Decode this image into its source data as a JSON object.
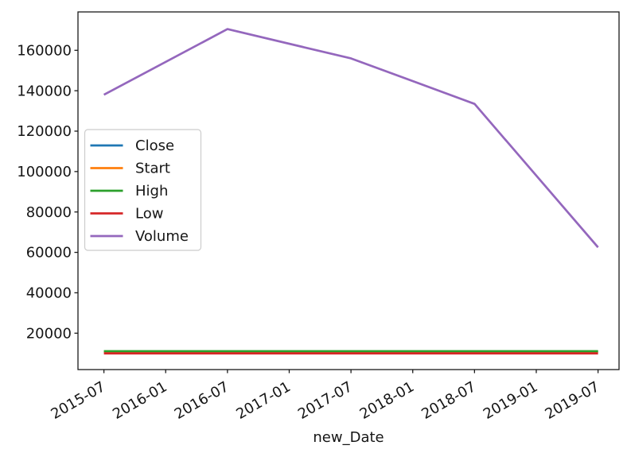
{
  "chart_data": {
    "type": "line",
    "title": "",
    "xlabel": "new_Date",
    "ylabel": "",
    "x_dates": [
      "2015-07",
      "2016-07",
      "2017-07",
      "2018-07",
      "2019-07"
    ],
    "x": [
      0,
      1,
      2,
      3,
      4
    ],
    "series": [
      {
        "name": "Close",
        "color": "#1f77b4",
        "values": [
          10900,
          10900,
          10900,
          10900,
          10900
        ]
      },
      {
        "name": "Start",
        "color": "#ff7f0e",
        "values": [
          10850,
          10850,
          10850,
          10850,
          10850
        ]
      },
      {
        "name": "High",
        "color": "#2ca02c",
        "values": [
          11100,
          11100,
          11100,
          11100,
          11100
        ]
      },
      {
        "name": "Low",
        "color": "#d62728",
        "values": [
          10000,
          10000,
          10000,
          10000,
          10000
        ]
      },
      {
        "name": "Volume",
        "color": "#9467bd",
        "values": [
          138000,
          170500,
          156000,
          133500,
          62500
        ]
      }
    ],
    "x_tick_positions": [
      0,
      0.5,
      1,
      1.5,
      2,
      2.5,
      3,
      3.5,
      4
    ],
    "x_tick_labels": [
      "2015-07",
      "2016-01",
      "2016-07",
      "2017-01",
      "2017-07",
      "2018-01",
      "2018-07",
      "2019-01",
      "2019-07"
    ],
    "x_tick_rotation_deg": 30,
    "y_ticks": [
      20000,
      40000,
      60000,
      80000,
      100000,
      120000,
      140000,
      160000
    ],
    "xlim": [
      -0.21,
      4.17
    ],
    "ylim": [
      2000,
      179000
    ],
    "grid": false,
    "legend": {
      "position": "center-left-inside",
      "entries": [
        "Close",
        "Start",
        "High",
        "Low",
        "Volume"
      ]
    },
    "colors": {
      "spine": "#1a1a1a",
      "text": "#151515",
      "legend_border": "#cccccc",
      "legend_bg": "#ffffff"
    }
  }
}
